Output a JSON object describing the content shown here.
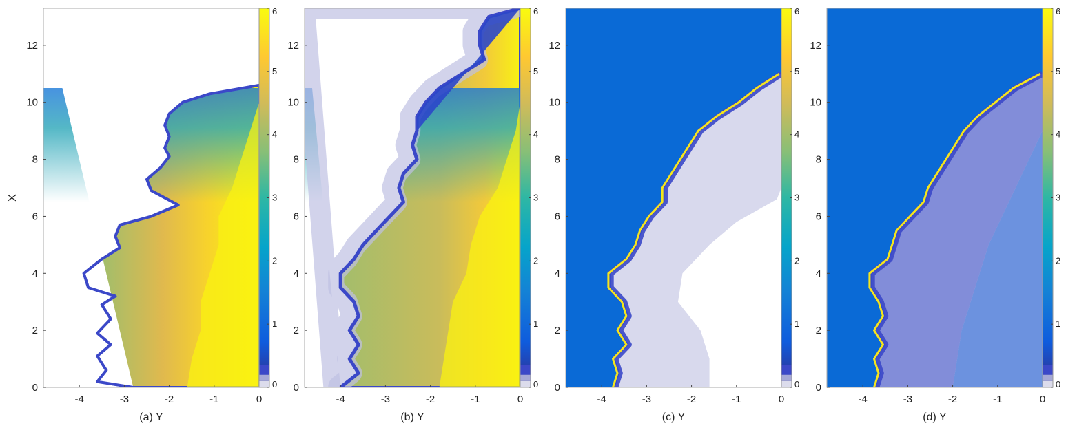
{
  "chart_data": [
    {
      "type": "heatmap",
      "panel": "a",
      "xlabel": "(a) Y",
      "ylabel": "X",
      "xlim": [
        -4.8,
        0
      ],
      "ylim": [
        0,
        13.3
      ],
      "xticks": [
        -4,
        -3,
        -2,
        -1,
        0
      ],
      "yticks": [
        0,
        2,
        4,
        6,
        8,
        10,
        12
      ],
      "colorbar": {
        "range": [
          0,
          6
        ],
        "ticks": [
          0,
          1,
          2,
          3,
          4,
          5,
          6
        ]
      },
      "front": [
        [
          0.0,
          -2.8
        ],
        [
          0.2,
          -3.6
        ],
        [
          0.6,
          -3.4
        ],
        [
          1.1,
          -3.6
        ],
        [
          1.5,
          -3.3
        ],
        [
          1.9,
          -3.6
        ],
        [
          2.4,
          -3.3
        ],
        [
          2.9,
          -3.5
        ],
        [
          3.2,
          -3.2
        ],
        [
          3.5,
          -3.8
        ],
        [
          4.0,
          -3.9
        ],
        [
          4.5,
          -3.5
        ],
        [
          4.9,
          -3.1
        ],
        [
          5.3,
          -3.2
        ],
        [
          5.7,
          -3.1
        ],
        [
          6.0,
          -2.4
        ],
        [
          6.4,
          -1.8
        ],
        [
          6.9,
          -2.4
        ],
        [
          7.3,
          -2.5
        ],
        [
          7.7,
          -2.2
        ],
        [
          8.1,
          -2.0
        ],
        [
          8.4,
          -2.1
        ],
        [
          8.8,
          -2.0
        ],
        [
          9.2,
          -2.1
        ],
        [
          9.6,
          -2.0
        ],
        [
          10.0,
          -1.7
        ],
        [
          10.3,
          -1.1
        ],
        [
          10.6,
          0.0
        ]
      ],
      "inner_front": [
        [
          0.0,
          -1.6
        ],
        [
          1.0,
          -1.5
        ],
        [
          2.0,
          -1.3
        ],
        [
          3.0,
          -1.3
        ],
        [
          4.0,
          -1.1
        ],
        [
          5.0,
          -0.9
        ],
        [
          6.0,
          -0.9
        ],
        [
          7.0,
          -0.6
        ],
        [
          8.0,
          -0.4
        ],
        [
          9.0,
          -0.2
        ],
        [
          10.0,
          0.0
        ]
      ]
    },
    {
      "type": "heatmap",
      "panel": "b",
      "xlabel": "(b) Y",
      "xlim": [
        -4.8,
        0
      ],
      "ylim": [
        0,
        13.3
      ],
      "xticks": [
        -4,
        -3,
        -2,
        -1,
        0
      ],
      "yticks": [
        0,
        2,
        4,
        6,
        8,
        10,
        12
      ],
      "colorbar": {
        "range": [
          0,
          6
        ],
        "ticks": [
          0,
          1,
          2,
          3,
          4,
          5,
          6
        ]
      },
      "front": [
        [
          0.0,
          -4.0
        ],
        [
          0.5,
          -3.6
        ],
        [
          1.0,
          -3.8
        ],
        [
          1.5,
          -3.6
        ],
        [
          2.0,
          -3.8
        ],
        [
          2.5,
          -3.6
        ],
        [
          3.0,
          -3.7
        ],
        [
          3.5,
          -4.0
        ],
        [
          4.0,
          -4.0
        ],
        [
          4.5,
          -3.7
        ],
        [
          5.0,
          -3.5
        ],
        [
          5.5,
          -3.2
        ],
        [
          6.0,
          -2.9
        ],
        [
          6.5,
          -2.6
        ],
        [
          7.0,
          -2.7
        ],
        [
          7.5,
          -2.6
        ],
        [
          8.0,
          -2.3
        ],
        [
          8.5,
          -2.4
        ],
        [
          9.0,
          -2.3
        ],
        [
          9.5,
          -2.3
        ],
        [
          10.0,
          -2.1
        ],
        [
          10.5,
          -1.8
        ],
        [
          11.0,
          -1.3
        ],
        [
          11.5,
          -0.8
        ],
        [
          12.0,
          -0.9
        ],
        [
          12.5,
          -0.9
        ],
        [
          13.0,
          -0.7
        ],
        [
          13.3,
          0.0
        ]
      ],
      "inner_front": [
        [
          0.0,
          -1.8
        ],
        [
          1.0,
          -1.7
        ],
        [
          2.0,
          -1.6
        ],
        [
          3.0,
          -1.5
        ],
        [
          4.0,
          -1.2
        ],
        [
          5.0,
          -1.1
        ],
        [
          6.0,
          -0.9
        ],
        [
          7.0,
          -0.5
        ],
        [
          8.0,
          -0.3
        ],
        [
          9.0,
          -0.1
        ],
        [
          10.0,
          0.0
        ]
      ]
    },
    {
      "type": "heatmap",
      "panel": "c",
      "xlabel": "(c) Y",
      "xlim": [
        -4.8,
        0
      ],
      "ylim": [
        0,
        13.3
      ],
      "xticks": [
        -4,
        -3,
        -2,
        -1,
        0
      ],
      "yticks": [
        0,
        2,
        4,
        6,
        8,
        10,
        12
      ],
      "colorbar": {
        "range": [
          0,
          6
        ],
        "ticks": [
          0,
          1,
          2,
          3,
          4,
          5,
          6
        ]
      },
      "front": [
        [
          0.0,
          -3.7
        ],
        [
          0.5,
          -3.6
        ],
        [
          1.0,
          -3.7
        ],
        [
          1.5,
          -3.4
        ],
        [
          2.0,
          -3.6
        ],
        [
          2.5,
          -3.4
        ],
        [
          3.0,
          -3.5
        ],
        [
          3.5,
          -3.8
        ],
        [
          4.0,
          -3.8
        ],
        [
          4.5,
          -3.4
        ],
        [
          5.0,
          -3.2
        ],
        [
          5.5,
          -3.1
        ],
        [
          6.0,
          -2.9
        ],
        [
          6.5,
          -2.6
        ],
        [
          7.0,
          -2.6
        ],
        [
          7.5,
          -2.4
        ],
        [
          8.0,
          -2.2
        ],
        [
          8.5,
          -2.0
        ],
        [
          9.0,
          -1.8
        ],
        [
          9.5,
          -1.4
        ],
        [
          10.0,
          -0.9
        ],
        [
          10.5,
          -0.5
        ],
        [
          11.0,
          0.0
        ]
      ],
      "inner_front": [
        [
          0.0,
          -1.6
        ],
        [
          1.0,
          -1.6
        ],
        [
          2.0,
          -1.8
        ],
        [
          3.0,
          -2.3
        ],
        [
          4.0,
          -2.2
        ],
        [
          5.0,
          -1.6
        ],
        [
          5.8,
          -1.0
        ],
        [
          6.6,
          -0.1
        ],
        [
          7.0,
          0.0
        ]
      ]
    },
    {
      "type": "heatmap",
      "panel": "d",
      "xlabel": "(d) Y",
      "xlim": [
        -4.8,
        0
      ],
      "ylim": [
        0,
        13.3
      ],
      "xticks": [
        -4,
        -3,
        -2,
        -1,
        0
      ],
      "yticks": [
        0,
        2,
        4,
        6,
        8,
        10,
        12
      ],
      "colorbar": {
        "range": [
          0,
          6
        ],
        "ticks": [
          0,
          1,
          2,
          3,
          4,
          5,
          6
        ]
      },
      "front": [
        [
          0.0,
          -3.7
        ],
        [
          0.5,
          -3.6
        ],
        [
          1.0,
          -3.7
        ],
        [
          1.5,
          -3.5
        ],
        [
          2.0,
          -3.7
        ],
        [
          2.5,
          -3.5
        ],
        [
          3.0,
          -3.6
        ],
        [
          3.5,
          -3.8
        ],
        [
          4.0,
          -3.8
        ],
        [
          4.5,
          -3.4
        ],
        [
          5.0,
          -3.3
        ],
        [
          5.5,
          -3.2
        ],
        [
          6.0,
          -2.9
        ],
        [
          6.5,
          -2.6
        ],
        [
          7.0,
          -2.5
        ],
        [
          7.5,
          -2.3
        ],
        [
          8.0,
          -2.1
        ],
        [
          8.5,
          -1.9
        ],
        [
          9.0,
          -1.7
        ],
        [
          9.5,
          -1.4
        ],
        [
          10.0,
          -1.0
        ],
        [
          10.5,
          -0.6
        ],
        [
          11.0,
          0.0
        ]
      ],
      "inner_front": [
        [
          0.0,
          -2.0
        ],
        [
          1.0,
          -1.9
        ],
        [
          2.0,
          -1.8
        ],
        [
          3.0,
          -1.6
        ],
        [
          4.0,
          -1.4
        ],
        [
          5.0,
          -1.2
        ],
        [
          6.0,
          -0.9
        ],
        [
          7.0,
          -0.6
        ],
        [
          8.0,
          -0.3
        ],
        [
          9.0,
          0.0
        ]
      ]
    }
  ],
  "colors": {
    "parula": [
      "#352a87",
      "#0f5cdd",
      "#1481d6",
      "#06a4ca",
      "#2eb7a4",
      "#87bf77",
      "#d1bb59",
      "#fec832",
      "#f9fb0e"
    ],
    "background_blue": "#0a6ad6",
    "low_band": [
      "#dcdcec",
      "#a5a8d6",
      "#3b48c8"
    ]
  }
}
